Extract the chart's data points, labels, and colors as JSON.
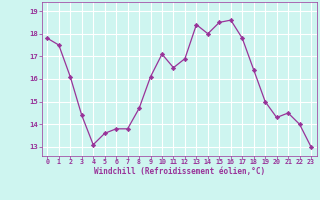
{
  "x": [
    0,
    1,
    2,
    3,
    4,
    5,
    6,
    7,
    8,
    9,
    10,
    11,
    12,
    13,
    14,
    15,
    16,
    17,
    18,
    19,
    20,
    21,
    22,
    23
  ],
  "y": [
    17.8,
    17.5,
    16.1,
    14.4,
    13.1,
    13.6,
    13.8,
    13.8,
    14.7,
    16.1,
    17.1,
    16.5,
    16.9,
    18.4,
    18.0,
    18.5,
    18.6,
    17.8,
    16.4,
    15.0,
    14.3,
    14.5,
    14.0,
    13.0
  ],
  "line_color": "#993399",
  "marker": "D",
  "marker_size": 2.2,
  "bg_color": "#cef5f0",
  "grid_color": "#ffffff",
  "xlabel": "Windchill (Refroidissement éolien,°C)",
  "xlabel_color": "#993399",
  "tick_color": "#993399",
  "ylim": [
    12.6,
    19.4
  ],
  "yticks": [
    13,
    14,
    15,
    16,
    17,
    18,
    19
  ],
  "xticks": [
    0,
    1,
    2,
    3,
    4,
    5,
    6,
    7,
    8,
    9,
    10,
    11,
    12,
    13,
    14,
    15,
    16,
    17,
    18,
    19,
    20,
    21,
    22,
    23
  ]
}
